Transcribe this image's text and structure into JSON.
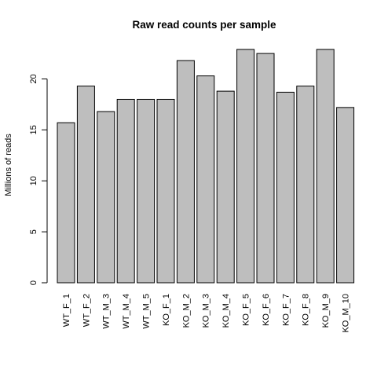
{
  "chart_data": {
    "type": "bar",
    "title": "Raw read counts per sample",
    "xlabel": "",
    "ylabel": "Millions of reads",
    "categories": [
      "WT_F_1",
      "WT_F_2",
      "WT_M_3",
      "WT_M_4",
      "WT_M_5",
      "KO_F_1",
      "KO_M_2",
      "KO_M_3",
      "KO_M_4",
      "KO_F_5",
      "KO_F_6",
      "KO_F_7",
      "KO_F_8",
      "KO_M_9",
      "KO_M_10"
    ],
    "values": [
      15.7,
      19.3,
      16.8,
      18.0,
      18.0,
      18.0,
      21.8,
      20.3,
      18.8,
      22.9,
      22.5,
      18.7,
      19.3,
      22.9,
      17.2
    ],
    "yticks": [
      0,
      5,
      10,
      15,
      20
    ],
    "ylim": [
      0,
      23.2
    ],
    "grid": false,
    "legend": "none",
    "bar_fill": "#bebebe",
    "bar_stroke": "#000000"
  }
}
